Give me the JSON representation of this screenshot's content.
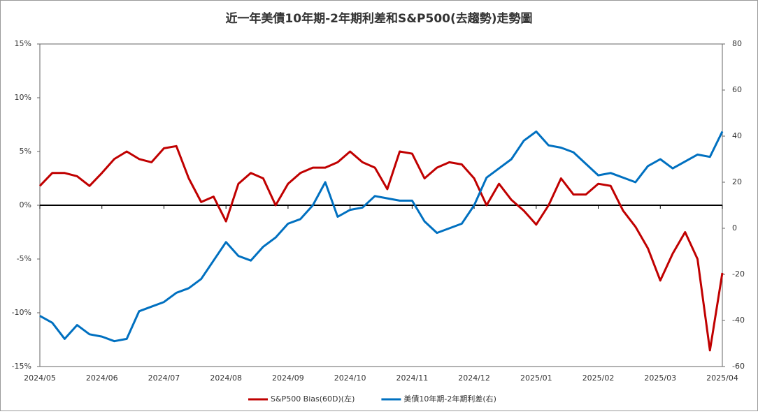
{
  "chart_data": {
    "type": "line",
    "title": "近一年美債10年期-2年期利差和S&P500(去趨勢)走勢圖",
    "categories": [
      "2024/05",
      null,
      null,
      null,
      null,
      "2024/06",
      null,
      null,
      null,
      null,
      "2024/07",
      null,
      null,
      null,
      null,
      "2024/08",
      null,
      null,
      null,
      null,
      "2024/09",
      null,
      null,
      null,
      null,
      "2024/10",
      null,
      null,
      null,
      null,
      "2024/11",
      null,
      null,
      null,
      null,
      "2024/12",
      null,
      null,
      null,
      null,
      "2025/01",
      null,
      null,
      null,
      null,
      "2025/02",
      null,
      null,
      null,
      null,
      "2025/03",
      null,
      null,
      null,
      null,
      "2025/04"
    ],
    "series": [
      {
        "name": "S&P500 Bias(60D)(左)",
        "color": "#c00000",
        "values": [
          1.8,
          3.0,
          3.0,
          2.7,
          1.8,
          3.0,
          4.3,
          5.0,
          4.3,
          4.0,
          5.3,
          5.5,
          2.5,
          0.3,
          0.8,
          -1.5,
          2.0,
          3.0,
          2.5,
          0,
          2.0,
          3.0,
          3.5,
          3.5,
          4.0,
          5.0,
          4.0,
          3.5,
          1.5,
          5.0,
          4.8,
          2.5,
          3.5,
          4.0,
          3.8,
          2.5,
          0,
          2.0,
          0.5,
          -0.5,
          -1.8,
          0,
          2.5,
          1.0,
          1.0,
          2.0,
          1.8,
          -0.5,
          -2.0,
          -4.0,
          -7.0,
          -4.5,
          -2.5,
          -5.0,
          -13.5,
          -6.3
        ]
      },
      {
        "name": "美債10年期-2年期利差(右)",
        "color": "#0070c0",
        "axis": "y2",
        "values": [
          -38,
          -41,
          -48,
          -42,
          -46,
          -47,
          -49,
          -48,
          -36,
          -34,
          -32,
          -28,
          -26,
          -22,
          -14,
          -6,
          -12,
          -14,
          -8,
          -4,
          2,
          4,
          10,
          20,
          5,
          8,
          9,
          14,
          13,
          12,
          12,
          3,
          -2,
          0,
          2,
          10,
          22,
          26,
          30,
          38,
          42,
          36,
          35,
          33,
          28,
          23,
          24,
          22,
          20,
          27,
          30,
          26,
          29,
          32,
          31,
          42
        ]
      }
    ],
    "ylim": [
      -15,
      15
    ],
    "yticks": [
      {
        "value": -15,
        "label": "-15%"
      },
      {
        "value": -10,
        "label": "-10%"
      },
      {
        "value": -5,
        "label": "-5%"
      },
      {
        "value": 0,
        "label": "0%"
      },
      {
        "value": 5,
        "label": "5%"
      },
      {
        "value": 10,
        "label": "10%"
      },
      {
        "value": 15,
        "label": "15%"
      }
    ],
    "y2lim": [
      -60,
      80
    ],
    "y2ticks": [
      -60,
      -40,
      -20,
      0,
      20,
      40,
      60,
      80
    ],
    "legend": "bottom"
  }
}
